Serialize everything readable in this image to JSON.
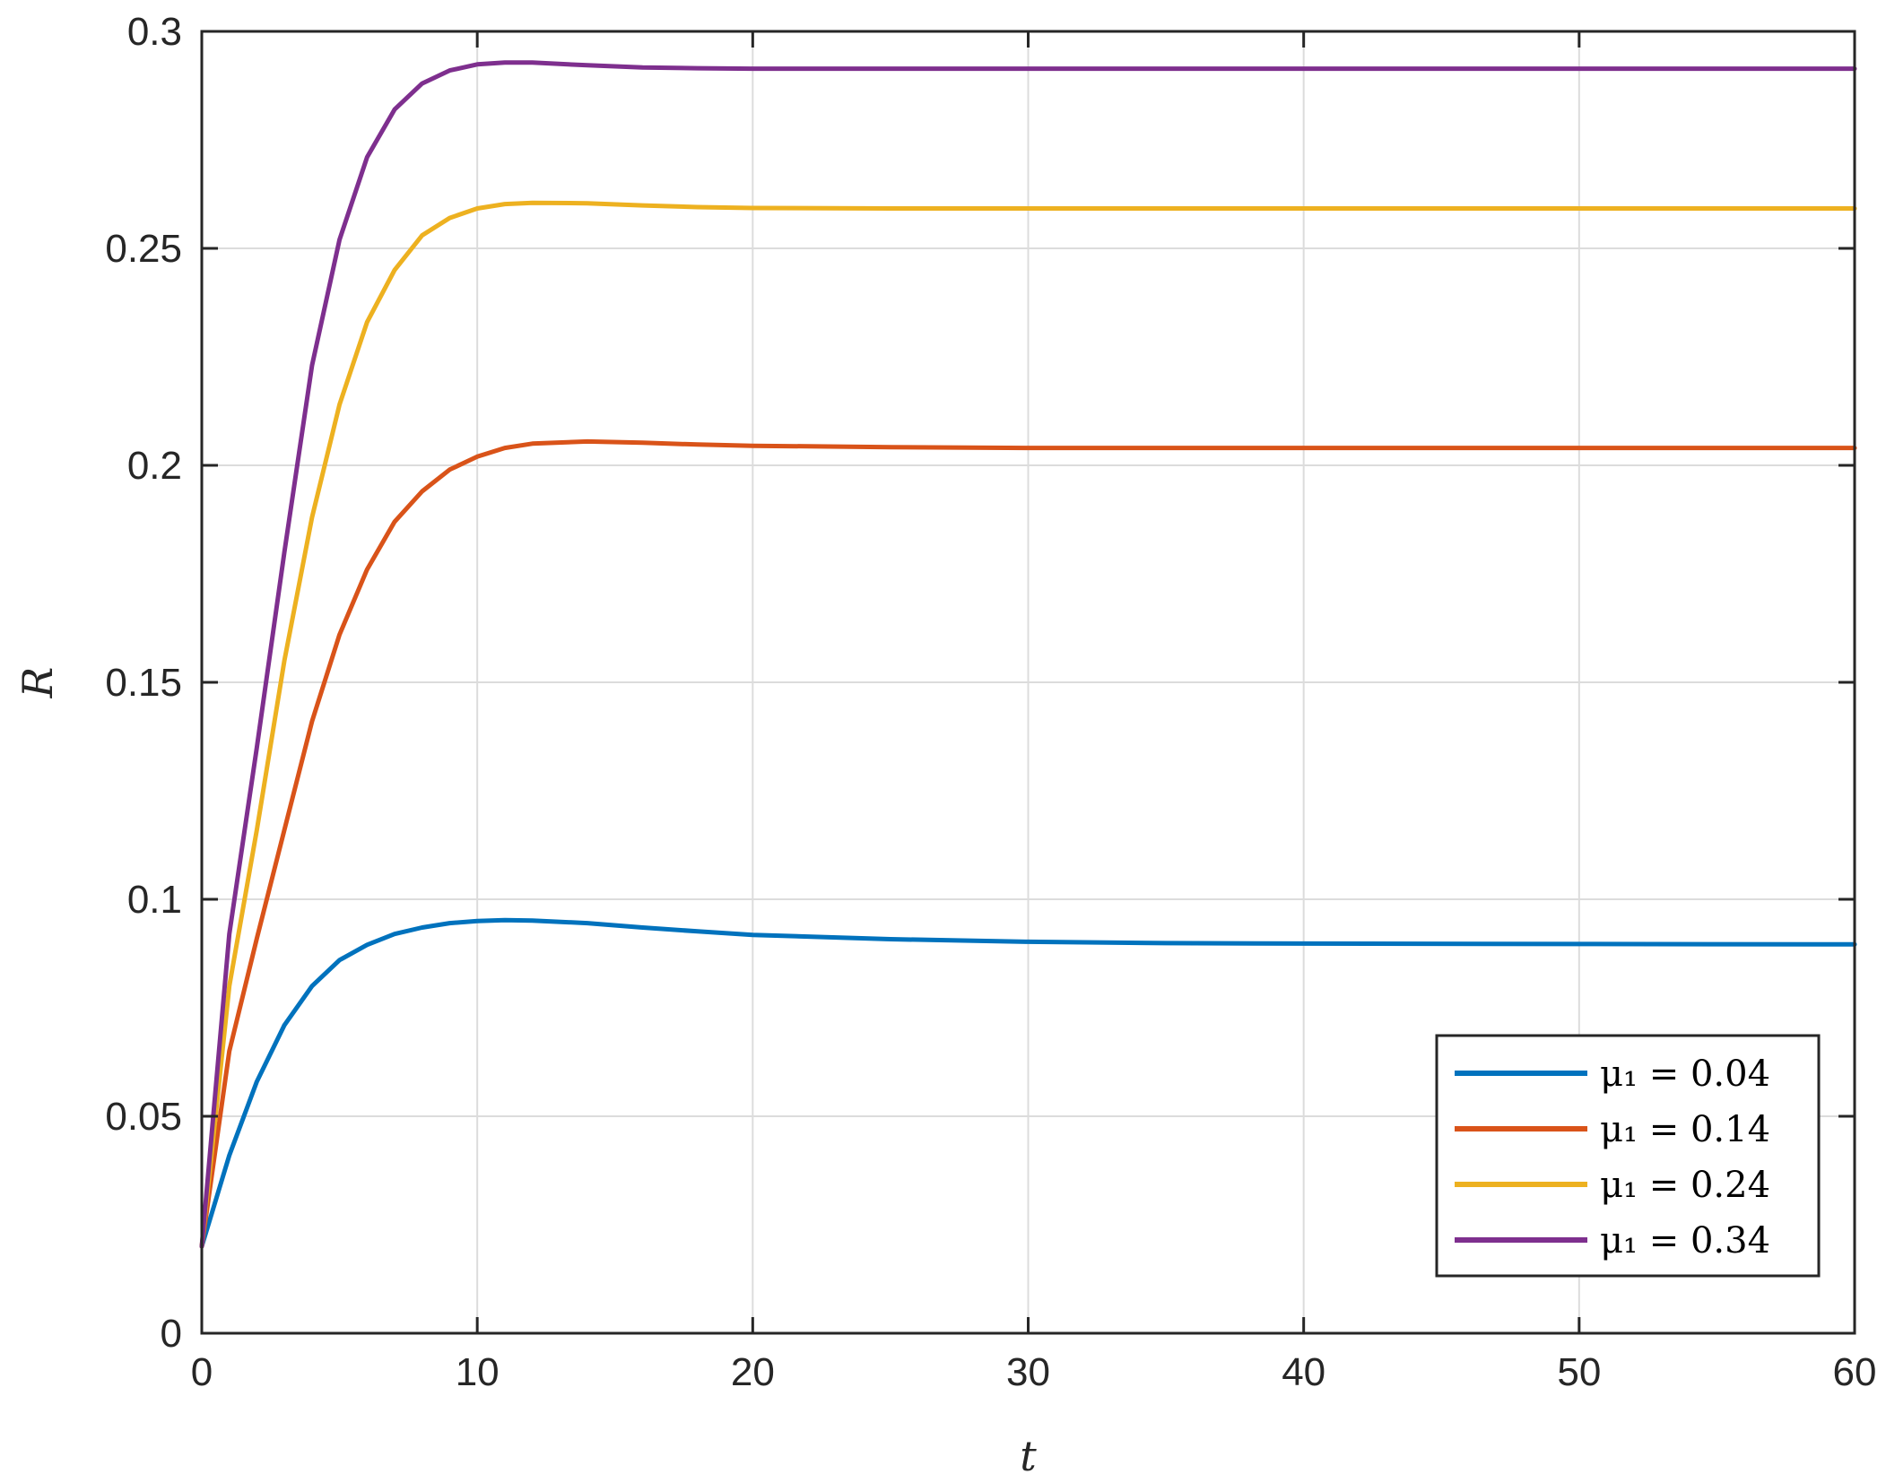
{
  "chart_data": {
    "type": "line",
    "xlabel": "t",
    "ylabel": "R",
    "xlim": [
      0,
      60
    ],
    "ylim": [
      0,
      0.3
    ],
    "xticks": [
      "0",
      "10",
      "20",
      "30",
      "40",
      "50",
      "60"
    ],
    "yticks": [
      "0",
      "0.05",
      "0.1",
      "0.15",
      "0.2",
      "0.25",
      "0.3"
    ],
    "grid": true,
    "legend_position": "bottom-right",
    "series": [
      {
        "name": "μ₁ = 0.04",
        "color": "#0072BD",
        "x": [
          0,
          1,
          2,
          3,
          4,
          5,
          6,
          7,
          8,
          9,
          10,
          11,
          12,
          14,
          16,
          18,
          20,
          25,
          30,
          35,
          40,
          50,
          60
        ],
        "y": [
          0.02,
          0.041,
          0.058,
          0.071,
          0.08,
          0.086,
          0.0895,
          0.092,
          0.0935,
          0.0945,
          0.095,
          0.0952,
          0.0951,
          0.0945,
          0.0935,
          0.0926,
          0.0918,
          0.0908,
          0.0902,
          0.0899,
          0.0898,
          0.0897,
          0.0896
        ]
      },
      {
        "name": "μ₁ = 0.14",
        "color": "#D95319",
        "x": [
          0,
          1,
          2,
          3,
          4,
          5,
          6,
          7,
          8,
          9,
          10,
          11,
          12,
          14,
          16,
          18,
          20,
          25,
          30,
          40,
          50,
          60
        ],
        "y": [
          0.02,
          0.065,
          0.091,
          0.116,
          0.141,
          0.161,
          0.176,
          0.187,
          0.194,
          0.199,
          0.202,
          0.204,
          0.205,
          0.2055,
          0.2052,
          0.2048,
          0.2045,
          0.2042,
          0.204,
          0.204,
          0.204,
          0.204
        ]
      },
      {
        "name": "μ₁ = 0.24",
        "color": "#EDB120",
        "x": [
          0,
          1,
          2,
          3,
          4,
          5,
          6,
          7,
          8,
          9,
          10,
          11,
          12,
          14,
          16,
          18,
          20,
          25,
          30,
          40,
          50,
          60
        ],
        "y": [
          0.02,
          0.08,
          0.116,
          0.155,
          0.188,
          0.214,
          0.233,
          0.245,
          0.253,
          0.257,
          0.2592,
          0.2602,
          0.2605,
          0.2604,
          0.2599,
          0.2595,
          0.2593,
          0.2592,
          0.2592,
          0.2592,
          0.2592,
          0.2592
        ]
      },
      {
        "name": "μ₁ = 0.34",
        "color": "#7E2F8E",
        "x": [
          0,
          1,
          2,
          3,
          4,
          5,
          6,
          7,
          8,
          9,
          10,
          11,
          12,
          14,
          16,
          18,
          20,
          25,
          30,
          40,
          50,
          60
        ],
        "y": [
          0.02,
          0.092,
          0.135,
          0.18,
          0.223,
          0.252,
          0.271,
          0.282,
          0.288,
          0.291,
          0.2924,
          0.2928,
          0.2928,
          0.2922,
          0.2917,
          0.2915,
          0.2914,
          0.2914,
          0.2914,
          0.2914,
          0.2914,
          0.2914
        ]
      }
    ]
  }
}
